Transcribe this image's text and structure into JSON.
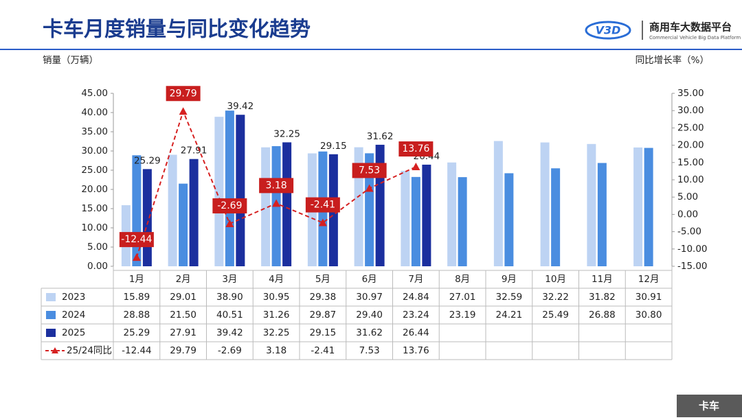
{
  "header": {
    "title": "卡车月度销量与同比变化趋势",
    "logo": "V3D",
    "brand": "商用车大数据平台",
    "brand_en": "Commercial Vehicle Big Data Platform"
  },
  "footer": {
    "tag": "卡车"
  },
  "chart_data": {
    "type": "bar",
    "y_label": "销量（万辆）",
    "y2_label": "同比增长率（%）",
    "categories": [
      "1月",
      "2月",
      "3月",
      "4月",
      "5月",
      "6月",
      "7月",
      "8月",
      "9月",
      "10月",
      "11月",
      "12月"
    ],
    "ylim": [
      0,
      45
    ],
    "yticks": [
      {
        "value": 0,
        "label": "0.00"
      },
      {
        "value": 5,
        "label": "5.00"
      },
      {
        "value": 10,
        "label": "10.00"
      },
      {
        "value": 15,
        "label": "15.00"
      },
      {
        "value": 20,
        "label": "20.00"
      },
      {
        "value": 25,
        "label": "25.00"
      },
      {
        "value": 30,
        "label": "30.00"
      },
      {
        "value": 35,
        "label": "35.00"
      },
      {
        "value": 40,
        "label": "40.00"
      },
      {
        "value": 45,
        "label": "45.00"
      }
    ],
    "y2lim": [
      -15,
      35
    ],
    "y2ticks": [
      {
        "value": -15,
        "label": "-15.00"
      },
      {
        "value": -10,
        "label": "-10.00"
      },
      {
        "value": -5,
        "label": "-5.00"
      },
      {
        "value": 0,
        "label": "0.00"
      },
      {
        "value": 5,
        "label": "5.00"
      },
      {
        "value": 10,
        "label": "10.00"
      },
      {
        "value": 15,
        "label": "15.00"
      },
      {
        "value": 20,
        "label": "20.00"
      },
      {
        "value": 25,
        "label": "25.00"
      },
      {
        "value": 30,
        "label": "30.00"
      },
      {
        "value": 35,
        "label": "35.00"
      }
    ],
    "grid": false,
    "series": [
      {
        "name": "2023",
        "color": "#bdd3f3",
        "values": [
          15.89,
          29.01,
          38.9,
          30.95,
          29.38,
          30.97,
          24.84,
          27.01,
          32.59,
          32.22,
          31.82,
          30.91
        ],
        "value_labels": [
          "15.89",
          "29.01",
          "38.90",
          "30.95",
          "29.38",
          "30.97",
          "24.84",
          "27.01",
          "32.59",
          "32.22",
          "31.82",
          "30.91"
        ]
      },
      {
        "name": "2024",
        "color": "#4a8de0",
        "values": [
          28.88,
          21.5,
          40.51,
          31.26,
          29.87,
          29.4,
          23.24,
          23.19,
          24.21,
          25.49,
          26.88,
          30.8
        ],
        "value_labels": [
          "28.88",
          "21.50",
          "40.51",
          "31.26",
          "29.87",
          "29.40",
          "23.24",
          "23.19",
          "24.21",
          "25.49",
          "26.88",
          "30.80"
        ]
      },
      {
        "name": "2025",
        "color": "#1b2f9e",
        "values": [
          25.29,
          27.91,
          39.42,
          32.25,
          29.15,
          31.62,
          26.44,
          null,
          null,
          null,
          null,
          null
        ],
        "value_labels": [
          "25.29",
          "27.91",
          "39.42",
          "32.25",
          "29.15",
          "31.62",
          "26.44",
          null,
          null,
          null,
          null,
          null
        ],
        "show_labels": true
      },
      {
        "name": "25/24同比",
        "color": "#d62121",
        "type": "line",
        "axis": "y2",
        "values": [
          -12.44,
          29.79,
          -2.69,
          3.18,
          -2.41,
          7.53,
          13.76,
          null,
          null,
          null,
          null,
          null
        ]
      }
    ]
  }
}
